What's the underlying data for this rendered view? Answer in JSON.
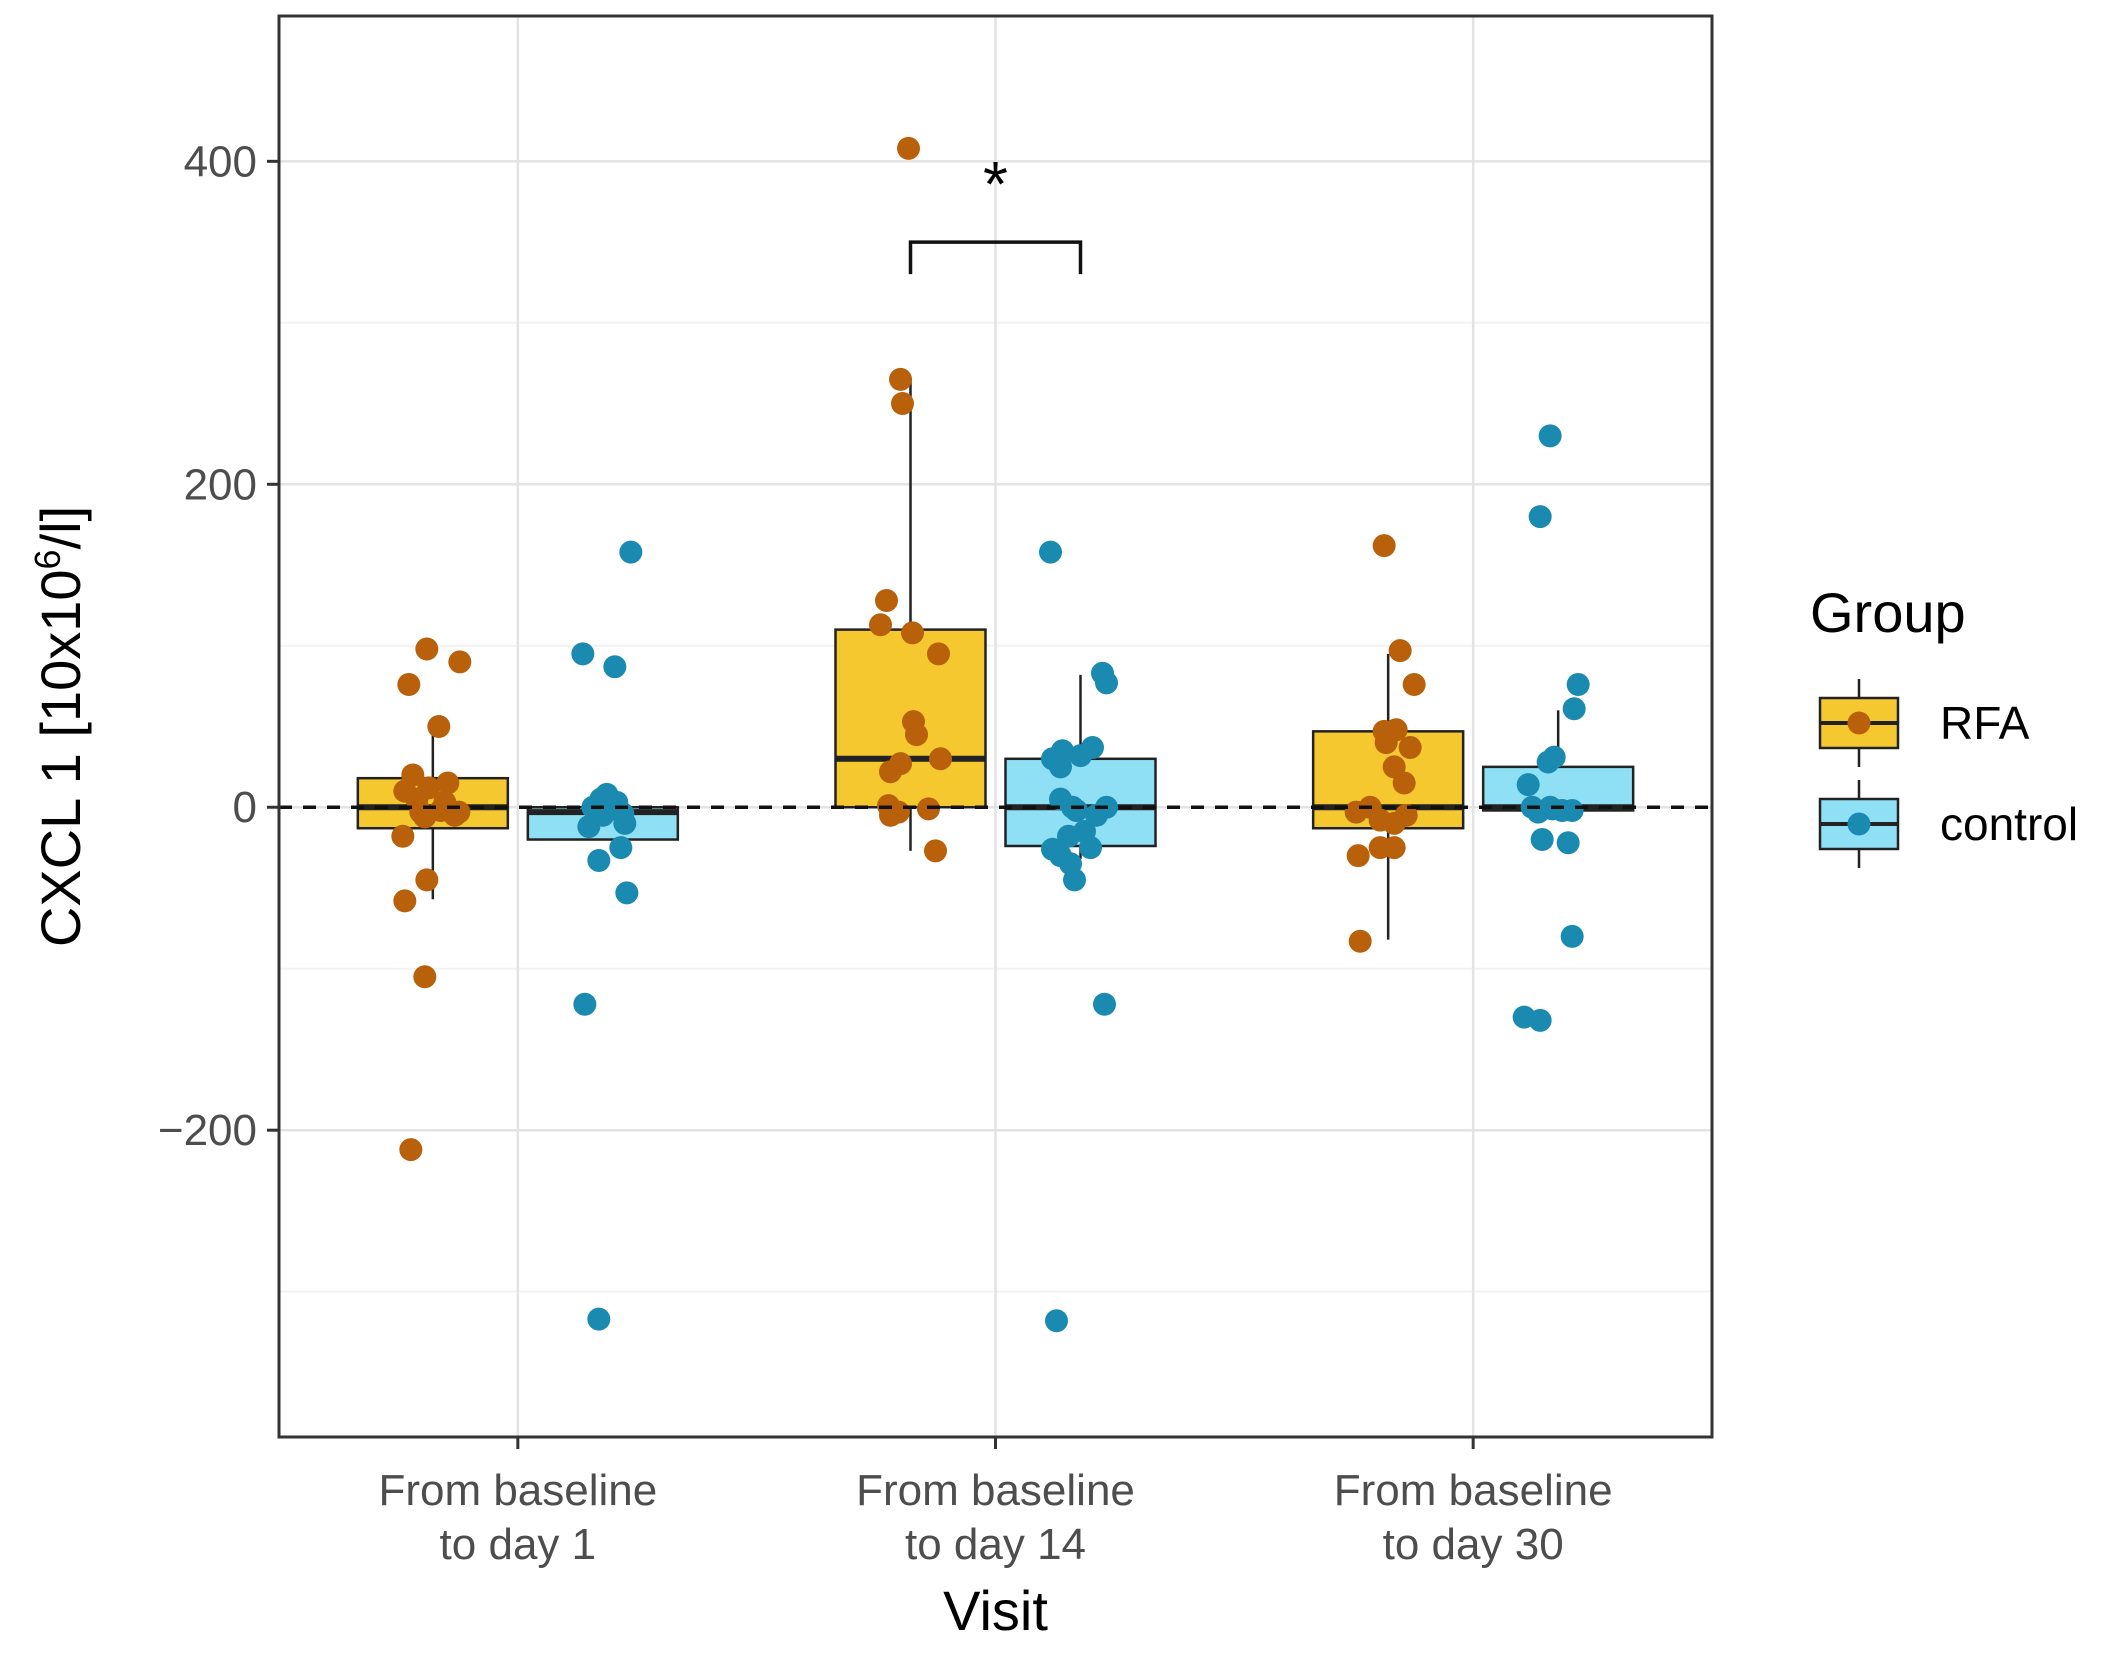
{
  "chart_data": {
    "type": "boxplot",
    "xlabel": "Visit",
    "ylabel_prefix": "CXCL 1 [10x10",
    "ylabel_sup": "6",
    "ylabel_suffix": "/l]",
    "ylim": [
      -390,
      490
    ],
    "yticks": [
      {
        "value": 400,
        "label": "400"
      },
      {
        "value": 200,
        "label": "200"
      },
      {
        "value": 0,
        "label": "0"
      },
      {
        "value": -200,
        "label": "−200"
      }
    ],
    "categories": [
      {
        "line1": "From baseline",
        "line2": "to day 1"
      },
      {
        "line1": "From baseline",
        "line2": "to day 14"
      },
      {
        "line1": "From baseline",
        "line2": "to day 30"
      }
    ],
    "legend": {
      "title": "Group",
      "items": [
        {
          "label": "RFA",
          "fill": "#F5C830",
          "point": "#B8600A"
        },
        {
          "label": "control",
          "fill": "#8FE0F5",
          "point": "#1A8AB0"
        }
      ]
    },
    "reference_line": 0,
    "significance": {
      "label": "*",
      "bracket_y": 350,
      "from": "RFA",
      "to": "control",
      "category": 1
    },
    "series": [
      {
        "name": "RFA",
        "fill": "#F5C830",
        "point_color": "#B8600A",
        "boxes": [
          {
            "q1": -13,
            "median": 0,
            "q3": 18,
            "whisker_low": -57,
            "whisker_high": 45
          },
          {
            "q1": 0,
            "median": 30,
            "q3": 110,
            "whisker_low": -27,
            "whisker_high": 265
          },
          {
            "q1": -13,
            "median": 0,
            "q3": 47,
            "whisker_low": -82,
            "whisker_high": 95
          }
        ],
        "points": [
          [
            [
              -24,
              76
            ],
            [
              -6,
              98
            ],
            [
              6,
              50
            ],
            [
              27,
              90
            ],
            [
              -20,
              20
            ],
            [
              -4,
              12
            ],
            [
              15,
              15
            ],
            [
              -28,
              10
            ],
            [
              -16,
              5
            ],
            [
              8,
              -2
            ],
            [
              -8,
              -6
            ],
            [
              22,
              -5
            ],
            [
              -30,
              -18
            ],
            [
              -6,
              -45
            ],
            [
              -28,
              -58
            ],
            [
              -8,
              -105
            ],
            [
              -22,
              -212
            ],
            [
              12,
              3
            ],
            [
              -12,
              -3
            ],
            [
              26,
              -3
            ]
          ],
          [
            [
              -2,
              408
            ],
            [
              -10,
              265
            ],
            [
              -8,
              250
            ],
            [
              -24,
              128
            ],
            [
              -30,
              113
            ],
            [
              2,
              108
            ],
            [
              28,
              95
            ],
            [
              3,
              53
            ],
            [
              6,
              45
            ],
            [
              30,
              30
            ],
            [
              -20,
              22
            ],
            [
              -10,
              27
            ],
            [
              -22,
              1
            ],
            [
              -12,
              -3
            ],
            [
              18,
              -1
            ],
            [
              -20,
              -5
            ],
            [
              25,
              -27
            ]
          ],
          [
            [
              -4,
              162
            ],
            [
              12,
              97
            ],
            [
              26,
              76
            ],
            [
              -4,
              47
            ],
            [
              8,
              48
            ],
            [
              22,
              37
            ],
            [
              -2,
              40
            ],
            [
              16,
              15
            ],
            [
              6,
              25
            ],
            [
              -32,
              -3
            ],
            [
              -18,
              0
            ],
            [
              -8,
              -8
            ],
            [
              6,
              -10
            ],
            [
              -8,
              -25
            ],
            [
              6,
              -25
            ],
            [
              -30,
              -30
            ],
            [
              -28,
              -83
            ],
            [
              18,
              -5
            ]
          ]
        ]
      },
      {
        "name": "control",
        "fill": "#8FE0F5",
        "point_color": "#1A8AB0",
        "boxes": [
          {
            "q1": -20,
            "median": -3,
            "q3": 0,
            "whisker_low": -20,
            "whisker_high": 0
          },
          {
            "q1": -24,
            "median": 0,
            "q3": 30,
            "whisker_low": -32,
            "whisker_high": 82
          },
          {
            "q1": -2,
            "median": 0,
            "q3": 25,
            "whisker_low": -5,
            "whisker_high": 60
          }
        ],
        "points": [
          [
            [
              28,
              158
            ],
            [
              -20,
              95
            ],
            [
              12,
              87
            ],
            [
              -14,
              -12
            ],
            [
              0,
              -5
            ],
            [
              -10,
              0
            ],
            [
              4,
              8
            ],
            [
              14,
              3
            ],
            [
              -8,
              0
            ],
            [
              20,
              -4
            ],
            [
              22,
              -10
            ],
            [
              -4,
              -33
            ],
            [
              18,
              -25
            ],
            [
              24,
              -53
            ],
            [
              -18,
              -122
            ],
            [
              -4,
              -317
            ],
            [
              8,
              0
            ],
            [
              -2,
              5
            ]
          ],
          [
            [
              -30,
              158
            ],
            [
              22,
              83
            ],
            [
              26,
              77
            ],
            [
              -28,
              30
            ],
            [
              -20,
              25
            ],
            [
              0,
              32
            ],
            [
              -18,
              35
            ],
            [
              12,
              37
            ],
            [
              -20,
              5
            ],
            [
              -8,
              0
            ],
            [
              -4,
              -2
            ],
            [
              16,
              -5
            ],
            [
              26,
              0
            ],
            [
              4,
              -15
            ],
            [
              -12,
              -18
            ],
            [
              -28,
              -26
            ],
            [
              -20,
              -30
            ],
            [
              10,
              -25
            ],
            [
              -10,
              -35
            ],
            [
              -6,
              -45
            ],
            [
              24,
              -122
            ],
            [
              -24,
              -318
            ]
          ],
          [
            [
              -8,
              230
            ],
            [
              -18,
              180
            ],
            [
              20,
              76
            ],
            [
              16,
              61
            ],
            [
              -10,
              28
            ],
            [
              -4,
              31
            ],
            [
              -30,
              14
            ],
            [
              -26,
              0
            ],
            [
              -6,
              -1
            ],
            [
              4,
              -2
            ],
            [
              -20,
              -3
            ],
            [
              14,
              -2
            ],
            [
              -16,
              -20
            ],
            [
              10,
              -22
            ],
            [
              -34,
              -130
            ],
            [
              -18,
              -132
            ],
            [
              14,
              -80
            ],
            [
              -8,
              0
            ]
          ]
        ]
      }
    ]
  }
}
